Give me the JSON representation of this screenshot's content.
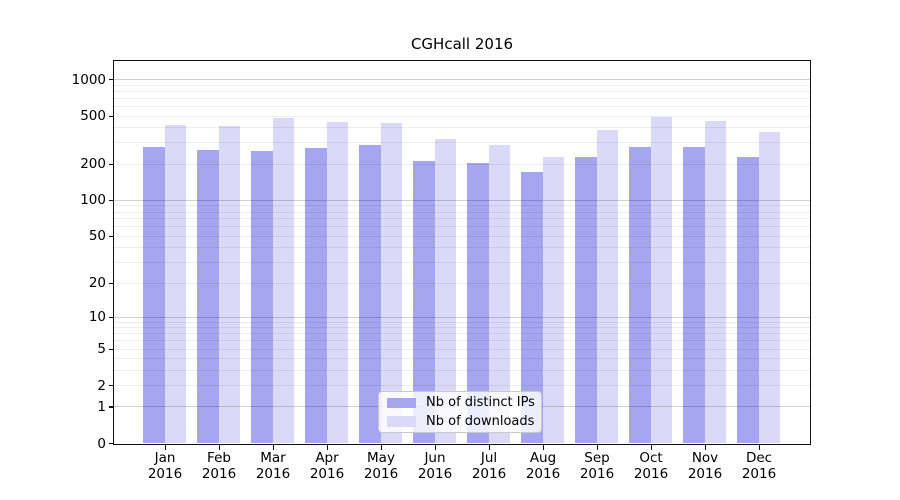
{
  "title": "CGHcall 2016",
  "chart_data": {
    "type": "bar",
    "title": "CGHcall 2016",
    "scale": "log1p",
    "categories": [
      "Jan",
      "Feb",
      "Mar",
      "Apr",
      "May",
      "Jun",
      "Jul",
      "Aug",
      "Sep",
      "Oct",
      "Nov",
      "Dec"
    ],
    "year_label": "2016",
    "series": [
      {
        "name": "Nb of distinct IPs",
        "color": "#a5a5f1",
        "values": [
          272,
          260,
          254,
          268,
          286,
          211,
          201,
          171,
          228,
          276,
          277,
          226
        ]
      },
      {
        "name": "Nb of downloads",
        "color": "#dadaf8",
        "values": [
          418,
          412,
          474,
          442,
          434,
          320,
          285,
          226,
          380,
          482,
          453,
          365
        ]
      }
    ],
    "yticks": [
      0,
      1,
      2,
      5,
      10,
      20,
      50,
      100,
      200,
      500,
      1000
    ],
    "ylim": [
      0,
      1450
    ],
    "xlabel": "",
    "ylabel": "",
    "grid": true,
    "legend_position": "lower center"
  },
  "legend": {
    "items": [
      {
        "label": "Nb of distinct IPs",
        "color": "#a5a5f1"
      },
      {
        "label": "Nb of downloads",
        "color": "#dadaf8"
      }
    ]
  }
}
